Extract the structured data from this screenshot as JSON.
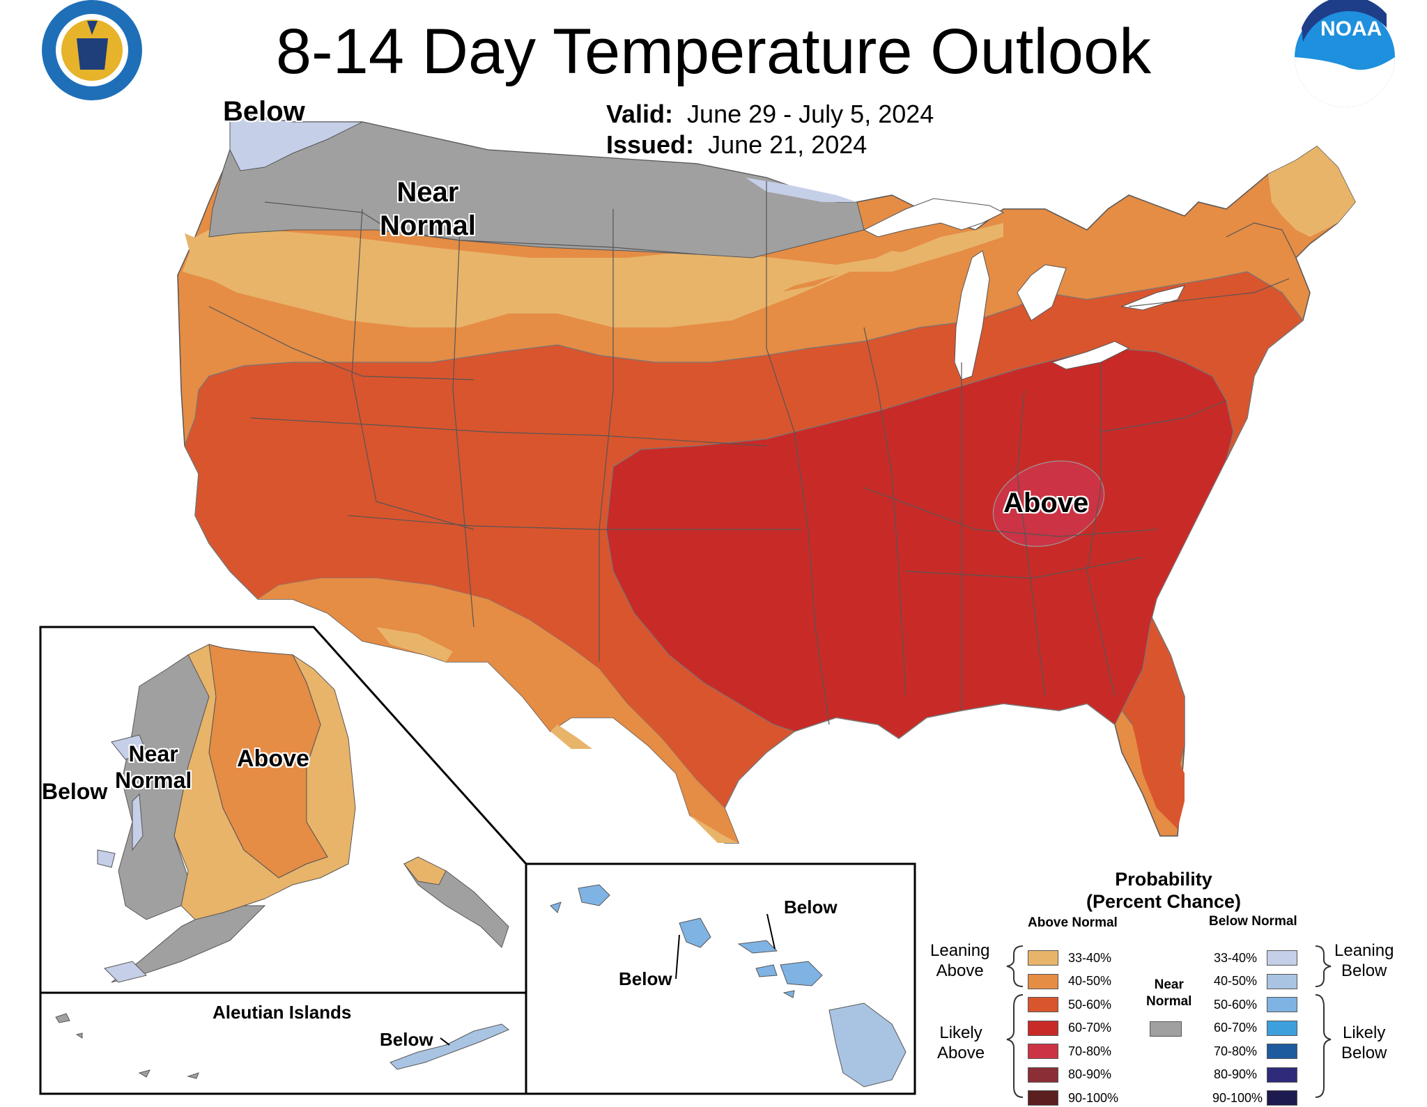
{
  "title": "8-14 Day Temperature Outlook",
  "valid": {
    "label": "Valid:",
    "value": "June 29 - July 5, 2024"
  },
  "issued": {
    "label": "Issued:",
    "value": "June 21, 2024"
  },
  "logos": {
    "left": "department-of-commerce-seal",
    "right": "NOAA",
    "right_text": "NOAA"
  },
  "map_labels": {
    "conus_below": "Below",
    "conus_near_normal": "Near\nNormal",
    "conus_above": "Above",
    "ak_near_normal": "Near\nNormal",
    "ak_above": "Above",
    "ak_below": "Below",
    "aleutian_title": "Aleutian Islands",
    "aleutian_below": "Below",
    "hi_below_1": "Below",
    "hi_below_2": "Below"
  },
  "legend": {
    "title": "Probability\n(Percent Chance)",
    "above_head": "Above Normal",
    "below_head": "Below Normal",
    "near_normal": "Near\nNormal",
    "leaning_above": "Leaning\nAbove",
    "likely_above": "Likely\nAbove",
    "leaning_below": "Leaning\nBelow",
    "likely_below": "Likely\nBelow",
    "above": [
      {
        "range": "33-40%",
        "color": "#E8B46A"
      },
      {
        "range": "40-50%",
        "color": "#E58C45"
      },
      {
        "range": "50-60%",
        "color": "#D9552E"
      },
      {
        "range": "60-70%",
        "color": "#C82B27"
      },
      {
        "range": "70-80%",
        "color": "#CC3344"
      },
      {
        "range": "80-90%",
        "color": "#8B2E36"
      },
      {
        "range": "90-100%",
        "color": "#5C1F1F"
      }
    ],
    "below": [
      {
        "range": "33-40%",
        "color": "#C6CFE8"
      },
      {
        "range": "40-50%",
        "color": "#A9C4E3"
      },
      {
        "range": "50-60%",
        "color": "#7FB3E3"
      },
      {
        "range": "60-70%",
        "color": "#3E9FDD"
      },
      {
        "range": "70-80%",
        "color": "#1D5B9E"
      },
      {
        "range": "80-90%",
        "color": "#2E2B7A"
      },
      {
        "range": "90-100%",
        "color": "#1C1A4E"
      }
    ],
    "near_color": "#A0A0A0"
  }
}
